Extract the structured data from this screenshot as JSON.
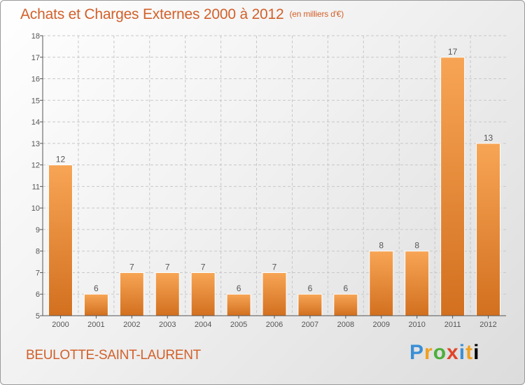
{
  "title": "Achats et Charges Externes 2000 à 2012",
  "unit": "(en milliers d'€)",
  "commune": "BEULOTTE-SAINT-LAURENT",
  "brand": [
    "P",
    "r",
    "o",
    "x",
    "i",
    "t",
    "i"
  ],
  "chart_data": {
    "type": "bar",
    "title": "Achats et Charges Externes 2000 à 2012",
    "xlabel": "",
    "ylabel": "",
    "categories": [
      "2000",
      "2001",
      "2002",
      "2003",
      "2004",
      "2005",
      "2006",
      "2007",
      "2008",
      "2009",
      "2010",
      "2011",
      "2012"
    ],
    "values": [
      12,
      6,
      7,
      7,
      7,
      6,
      7,
      6,
      6,
      8,
      8,
      17,
      13
    ],
    "ylim": [
      5,
      18
    ],
    "yticks": [
      5,
      6,
      7,
      8,
      9,
      10,
      11,
      12,
      13,
      14,
      15,
      16,
      17,
      18
    ],
    "grid": true,
    "colors": {
      "bar_light": "#f7a555",
      "bar_dark": "#d2701f",
      "grid": "#c8c8c8",
      "axis": "#555555",
      "label": "#555555",
      "title": "#d2602a"
    }
  }
}
